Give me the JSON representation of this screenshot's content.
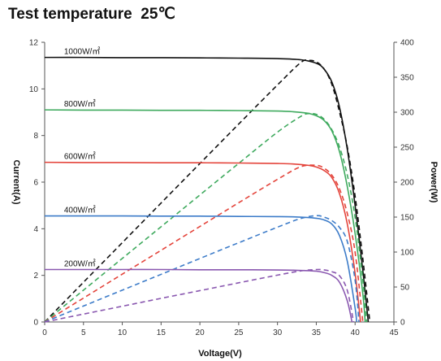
{
  "chart_data": {
    "type": "line",
    "title": "Test temperature  25℃",
    "xlabel": "Voltage(V)",
    "ylabel_left": "Current(A)",
    "ylabel_right": "Power(W)",
    "xlim": [
      0,
      45
    ],
    "ylim_left": [
      0,
      12
    ],
    "ylim_right": [
      0,
      400
    ],
    "xticks": [
      0,
      5,
      10,
      15,
      20,
      25,
      30,
      35,
      40,
      45
    ],
    "yticks_left": [
      0,
      2,
      4,
      6,
      8,
      10,
      12
    ],
    "yticks_right": [
      0,
      50,
      100,
      150,
      200,
      250,
      300,
      350,
      400
    ],
    "grid": false,
    "legend": "none",
    "series": [
      {
        "name": "1000W/㎡",
        "color": "#111111",
        "iv": {
          "x": [
            0,
            5,
            10,
            15,
            20,
            25,
            30,
            33,
            35,
            36,
            37,
            38,
            39,
            40,
            41,
            41.7
          ],
          "y": [
            11.35,
            11.35,
            11.34,
            11.34,
            11.33,
            11.32,
            11.3,
            11.25,
            11.1,
            10.85,
            10.3,
            9.2,
            7.4,
            5.0,
            2.2,
            0
          ]
        },
        "pv": {
          "x": [
            0,
            5,
            10,
            15,
            20,
            25,
            30,
            33,
            34,
            35,
            36,
            37,
            38,
            39,
            40,
            41,
            41.9
          ],
          "y": [
            0,
            56.8,
            113.4,
            170.1,
            226.6,
            283,
            339,
            371,
            374,
            372,
            362,
            340,
            300,
            250,
            180,
            90,
            0
          ]
        }
      },
      {
        "name": "800W/㎡",
        "color": "#3faa5e",
        "iv": {
          "x": [
            0,
            5,
            10,
            15,
            20,
            25,
            30,
            32,
            34,
            35,
            36,
            37,
            38,
            39,
            40,
            41,
            41.3
          ],
          "y": [
            9.1,
            9.09,
            9.09,
            9.08,
            9.08,
            9.07,
            9.05,
            9.02,
            8.95,
            8.85,
            8.65,
            8.2,
            7.3,
            5.8,
            3.8,
            1.2,
            0
          ]
        },
        "pv": {
          "x": [
            0,
            5,
            10,
            15,
            20,
            25,
            30,
            33,
            34,
            35,
            36,
            37,
            38,
            39,
            40,
            41,
            41.5
          ],
          "y": [
            0,
            45.5,
            90.9,
            136.2,
            181.6,
            226.8,
            271.5,
            294,
            298,
            297,
            290,
            275,
            250,
            210,
            150,
            60,
            0
          ]
        }
      },
      {
        "name": "600W/㎡",
        "color": "#e4443b",
        "iv": {
          "x": [
            0,
            5,
            10,
            15,
            20,
            25,
            30,
            32,
            34,
            35,
            36,
            37,
            38,
            39,
            40,
            40.7
          ],
          "y": [
            6.85,
            6.84,
            6.84,
            6.83,
            6.83,
            6.82,
            6.8,
            6.78,
            6.72,
            6.65,
            6.5,
            6.2,
            5.5,
            4.2,
            2.1,
            0
          ]
        },
        "pv": {
          "x": [
            0,
            5,
            10,
            15,
            20,
            25,
            30,
            33,
            35,
            36,
            37,
            38,
            39,
            40,
            41
          ],
          "y": [
            0,
            34.2,
            68.4,
            102.5,
            136.6,
            170.5,
            204,
            222,
            224,
            220,
            210,
            190,
            155,
            100,
            0
          ]
        }
      },
      {
        "name": "400W/㎡",
        "color": "#3d7cc9",
        "iv": {
          "x": [
            0,
            5,
            10,
            15,
            20,
            25,
            30,
            32,
            34,
            35,
            36,
            37,
            38,
            39,
            40,
            40.2
          ],
          "y": [
            4.55,
            4.55,
            4.55,
            4.54,
            4.54,
            4.53,
            4.52,
            4.51,
            4.48,
            4.45,
            4.38,
            4.2,
            3.7,
            2.6,
            0.6,
            0
          ]
        },
        "pv": {
          "x": [
            0,
            5,
            10,
            15,
            20,
            25,
            30,
            33,
            35,
            36,
            37,
            38,
            39,
            40,
            40.5
          ],
          "y": [
            0,
            22.8,
            45.5,
            68.1,
            90.8,
            113.3,
            135.6,
            148,
            152,
            150,
            145,
            135,
            115,
            60,
            0
          ]
        }
      },
      {
        "name": "200W/㎡",
        "color": "#8a58b0",
        "iv": {
          "x": [
            0,
            5,
            10,
            15,
            20,
            25,
            30,
            32,
            34,
            35,
            36,
            37,
            38,
            39,
            39.6
          ],
          "y": [
            2.25,
            2.25,
            2.25,
            2.25,
            2.24,
            2.24,
            2.23,
            2.22,
            2.2,
            2.18,
            2.12,
            2.0,
            1.7,
            0.9,
            0
          ]
        },
        "pv": {
          "x": [
            0,
            5,
            10,
            15,
            20,
            25,
            30,
            33,
            35,
            36,
            37,
            38,
            39,
            39.8
          ],
          "y": [
            0,
            11.3,
            22.5,
            33.8,
            44.8,
            56,
            67,
            73,
            75,
            74.5,
            72,
            66,
            45,
            0
          ]
        }
      }
    ]
  }
}
